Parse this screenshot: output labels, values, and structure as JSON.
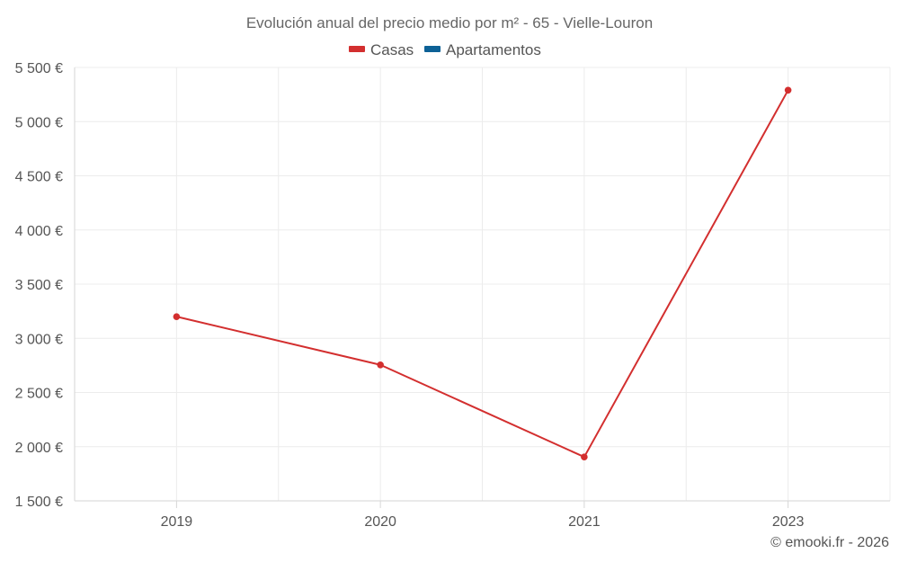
{
  "chart_data": {
    "type": "line",
    "title": "Evolución anual del precio medio por m² - 65 - Vielle-Louron",
    "categories": [
      "2019",
      "2020",
      "2021",
      "2023"
    ],
    "series": [
      {
        "name": "Casas",
        "color": "#d32f2f",
        "values": [
          3200,
          2755,
          1905,
          5290
        ]
      },
      {
        "name": "Apartamentos",
        "color": "#0d6196",
        "values": [
          null,
          null,
          null,
          null
        ]
      }
    ],
    "xlabel": "",
    "ylabel": "",
    "ylim": [
      1500,
      5500
    ],
    "yticks": [
      1500,
      2000,
      2500,
      3000,
      3500,
      4000,
      4500,
      5000,
      5500
    ],
    "ytick_labels": [
      "1 500 €",
      "2 000 €",
      "2 500 €",
      "3 000 €",
      "3 500 €",
      "4 000 €",
      "4 500 €",
      "5 000 €",
      "5 500 €"
    ],
    "grid": true,
    "legend_position": "top-center"
  },
  "footer": {
    "credit": "© emooki.fr - 2026"
  }
}
